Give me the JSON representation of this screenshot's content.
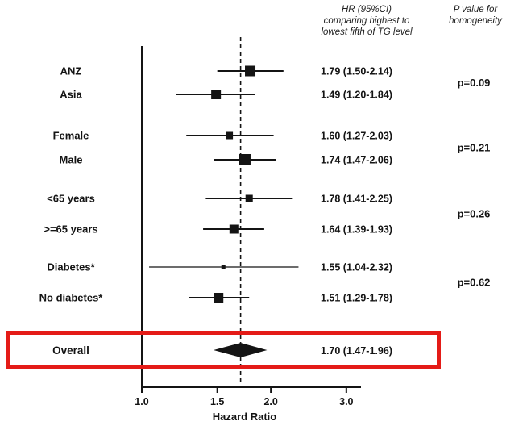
{
  "chart_data": {
    "type": "forest",
    "xlabel": "Hazard Ratio",
    "x_scale": "log",
    "x_range": [
      1.0,
      3.2
    ],
    "x_ticks": [
      {
        "value": 1.0,
        "label": "1.0"
      },
      {
        "value": 1.5,
        "label": "1.5"
      },
      {
        "value": 2.0,
        "label": "2.0"
      },
      {
        "value": 3.0,
        "label": "3.0"
      }
    ],
    "null_line": 1.0,
    "col_headers": {
      "hr": "HR (95%CI)\ncomparing highest to\nlowest fifth of TG level",
      "p": "P value for\nhomogeneity"
    },
    "groups": [
      {
        "p_label": "p=0.09",
        "rows": [
          {
            "label": "ANZ",
            "hr": 1.79,
            "lo": 1.5,
            "hi": 2.14,
            "text": "1.79 (1.50-2.14)",
            "marker_size": 13
          },
          {
            "label": "Asia",
            "hr": 1.49,
            "lo": 1.2,
            "hi": 1.84,
            "text": "1.49 (1.20-1.84)",
            "marker_size": 12
          }
        ]
      },
      {
        "p_label": "p=0.21",
        "rows": [
          {
            "label": "Female",
            "hr": 1.6,
            "lo": 1.27,
            "hi": 2.03,
            "text": "1.60 (1.27-2.03)",
            "marker_size": 9
          },
          {
            "label": "Male",
            "hr": 1.74,
            "lo": 1.47,
            "hi": 2.06,
            "text": "1.74 (1.47-2.06)",
            "marker_size": 14
          }
        ]
      },
      {
        "p_label": "p=0.26",
        "rows": [
          {
            "label": "<65 years",
            "hr": 1.78,
            "lo": 1.41,
            "hi": 2.25,
            "text": "1.78 (1.41-2.25)",
            "marker_size": 9
          },
          {
            "label": ">=65 years",
            "hr": 1.64,
            "lo": 1.39,
            "hi": 1.93,
            "text": "1.64 (1.39-1.93)",
            "marker_size": 11
          }
        ]
      },
      {
        "p_label": "p=0.62",
        "rows": [
          {
            "label": "Diabetes*",
            "hr": 1.55,
            "lo": 1.04,
            "hi": 2.32,
            "text": "1.55 (1.04-2.32)",
            "marker_size": 5
          },
          {
            "label": "No diabetes*",
            "hr": 1.51,
            "lo": 1.29,
            "hi": 1.78,
            "text": "1.51 (1.29-1.78)",
            "marker_size": 12
          }
        ]
      }
    ],
    "overall": {
      "label": "Overall",
      "hr": 1.7,
      "lo": 1.47,
      "hi": 1.96,
      "text": "1.70 (1.47-1.96)"
    },
    "colors": {
      "ink": "#141414",
      "highlight": "#e41b17"
    }
  }
}
